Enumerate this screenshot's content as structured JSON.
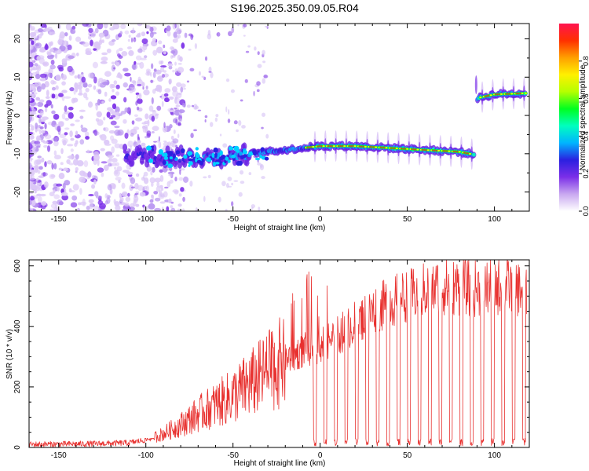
{
  "title": "S196.2025.350.09.05.R04",
  "colors": {
    "line": "#e8312f",
    "axis": "#000000",
    "background": "#ffffff"
  },
  "chart_data": [
    {
      "type": "heatmap",
      "name": "spectrogram",
      "xlabel": "Height of straight line (km)",
      "ylabel": "Frequency (Hz)",
      "xlim": [
        -167,
        120
      ],
      "ylim": [
        -25,
        24
      ],
      "xticks": [
        -150,
        -100,
        -50,
        0,
        50,
        100
      ],
      "yticks": [
        -20,
        -10,
        0,
        10,
        20
      ],
      "colorbar": {
        "label": "Normalized spectral amplitude",
        "range": [
          0,
          1
        ],
        "ticks": [
          "0.0",
          "0.2",
          "0.4",
          "0.6",
          "0.8"
        ],
        "tick_values": [
          0,
          0.2,
          0.4,
          0.6,
          0.8
        ],
        "colormap": [
          "#ffffff",
          "#c9a8f0",
          "#7b2fe8",
          "#2b20e0",
          "#00b4ff",
          "#00ffbf",
          "#00ff20",
          "#b4ff00",
          "#fff000",
          "#ffa000",
          "#ff3000",
          "#ff1450"
        ]
      },
      "signal_track": [
        {
          "x": -100,
          "f": -10.5
        },
        {
          "x": -80,
          "f": -10.8
        },
        {
          "x": -60,
          "f": -11.0
        },
        {
          "x": -40,
          "f": -10.0
        },
        {
          "x": -20,
          "f": -9.0
        },
        {
          "x": 0,
          "f": -8.0
        },
        {
          "x": 20,
          "f": -8.0
        },
        {
          "x": 40,
          "f": -8.5
        },
        {
          "x": 60,
          "f": -9.0
        },
        {
          "x": 80,
          "f": -9.5
        },
        {
          "x": 88,
          "f": -10.2
        },
        {
          "x": 90,
          "f": 4.5
        },
        {
          "x": 100,
          "f": 5.5
        },
        {
          "x": 118,
          "f": 5.8
        }
      ]
    },
    {
      "type": "line",
      "name": "snr",
      "xlabel": "Height of straight line (km)",
      "ylabel": "SNR (10 * v/v)",
      "xlim": [
        -167,
        120
      ],
      "ylim": [
        0,
        620
      ],
      "xticks": [
        -150,
        -100,
        -50,
        0,
        50,
        100
      ],
      "yticks": [
        0,
        200,
        400,
        600
      ],
      "series": [
        {
          "name": "SNR",
          "envelope": [
            {
              "x": -167,
              "y": 10
            },
            {
              "x": -130,
              "y": 12
            },
            {
              "x": -110,
              "y": 15
            },
            {
              "x": -100,
              "y": 25
            },
            {
              "x": -90,
              "y": 45
            },
            {
              "x": -80,
              "y": 75
            },
            {
              "x": -70,
              "y": 110
            },
            {
              "x": -60,
              "y": 140
            },
            {
              "x": -50,
              "y": 170
            },
            {
              "x": -40,
              "y": 210
            },
            {
              "x": -30,
              "y": 250
            },
            {
              "x": -20,
              "y": 290
            },
            {
              "x": -10,
              "y": 320
            },
            {
              "x": 0,
              "y": 340
            },
            {
              "x": 10,
              "y": 370
            },
            {
              "x": 20,
              "y": 410
            },
            {
              "x": 30,
              "y": 450
            },
            {
              "x": 40,
              "y": 480
            },
            {
              "x": 50,
              "y": 500
            },
            {
              "x": 60,
              "y": 520
            },
            {
              "x": 70,
              "y": 530
            },
            {
              "x": 80,
              "y": 530
            },
            {
              "x": 90,
              "y": 525
            },
            {
              "x": 100,
              "y": 530
            },
            {
              "x": 110,
              "y": 530
            },
            {
              "x": 118,
              "y": 520
            }
          ],
          "dropouts_x": [
            -3,
            3,
            9,
            15,
            21,
            27,
            33,
            39,
            45,
            51,
            57,
            63,
            69,
            75,
            81,
            87,
            93,
            99,
            105,
            111,
            117
          ]
        }
      ]
    }
  ]
}
